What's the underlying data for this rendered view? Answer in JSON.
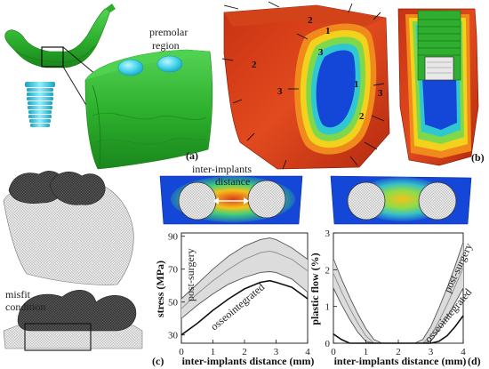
{
  "panel_a": {
    "tag": "(a)",
    "region_label_1": "premolar",
    "region_label_2": "region"
  },
  "panel_b": {
    "tag": "(b)",
    "line_numbers_left": [
      "2",
      "1",
      "3",
      "2",
      "3"
    ],
    "line_numbers_right": [
      "1",
      "3",
      "2"
    ]
  },
  "panel_c": {
    "tag": "(c)",
    "distance_label_1": "inter-implants",
    "distance_label_2": "distance",
    "misfit_label_1": "misfit",
    "misfit_label_2": "condition"
  },
  "panel_d": {
    "tag": "(d)"
  },
  "colors": {
    "bone_green": "#2fb82f",
    "implant_cyan": "#3fd0e8",
    "stress_red": "#e23a1a",
    "stress_blue": "#1446d8",
    "band_gray": "#dcdcdc"
  },
  "chart_data": [
    {
      "type": "line",
      "ylabel": "stress (MPa)",
      "xlabel": "inter-implants distance (mm)",
      "xlim": [
        0,
        4
      ],
      "ylim": [
        25,
        92
      ],
      "xticks": [
        "0",
        "1",
        "2",
        "3",
        "4"
      ],
      "yticks": [
        "30",
        "50",
        "70",
        "90"
      ],
      "grid": false,
      "annotations": [
        "post-surgery",
        "osseointegrated"
      ],
      "x": [
        0.0,
        0.5,
        1.0,
        1.5,
        2.0,
        2.5,
        2.8,
        3.0,
        3.5,
        4.0
      ],
      "series": [
        {
          "values": [
            52,
            61,
            70,
            78,
            84,
            88,
            89,
            88,
            83,
            76
          ]
        },
        {
          "values": [
            46,
            55,
            63,
            70,
            76,
            80,
            81,
            80,
            76,
            69
          ]
        },
        {
          "values": [
            40,
            48,
            55,
            61,
            65,
            68,
            68.5,
            68,
            64,
            56
          ]
        },
        {
          "values": [
            30,
            37,
            45,
            52,
            58,
            62,
            63,
            62,
            59,
            52
          ]
        }
      ]
    },
    {
      "type": "line",
      "ylabel": "plastic flow (%)",
      "xlabel": "inter-implants distance (mm)",
      "xlim": [
        0,
        4
      ],
      "ylim": [
        0,
        3
      ],
      "xticks": [
        "0",
        "1",
        "2",
        "3",
        "4"
      ],
      "yticks": [
        "0",
        "1",
        "2",
        "3"
      ],
      "grid": false,
      "annotations": [
        "post-surgery",
        "osseointegrated"
      ],
      "x": [
        0.0,
        0.25,
        0.5,
        0.75,
        1.0,
        1.25,
        1.5,
        1.75,
        2.0,
        2.25,
        2.5,
        2.75,
        3.0,
        3.25,
        3.5,
        3.75,
        4.0
      ],
      "series": [
        {
          "values": [
            2.3,
            1.75,
            1.25,
            0.8,
            0.4,
            0.1,
            0.0,
            0.0,
            0.0,
            0.0,
            0.0,
            0.1,
            0.45,
            0.95,
            1.5,
            2.1,
            2.75
          ]
        },
        {
          "values": [
            1.9,
            1.4,
            0.95,
            0.55,
            0.2,
            0.0,
            0.0,
            0.0,
            0.0,
            0.0,
            0.0,
            0.0,
            0.2,
            0.6,
            1.05,
            1.55,
            2.05
          ]
        },
        {
          "values": [
            1.5,
            1.05,
            0.65,
            0.3,
            0.05,
            0.0,
            0.0,
            0.0,
            0.0,
            0.0,
            0.0,
            0.0,
            0.05,
            0.35,
            0.7,
            1.1,
            1.5
          ]
        },
        {
          "values": [
            0.25,
            0.1,
            0.0,
            0.0,
            0.0,
            0.0,
            0.0,
            0.0,
            0.0,
            0.0,
            0.0,
            0.0,
            0.0,
            0.05,
            0.2,
            0.45,
            0.75
          ]
        }
      ]
    }
  ]
}
